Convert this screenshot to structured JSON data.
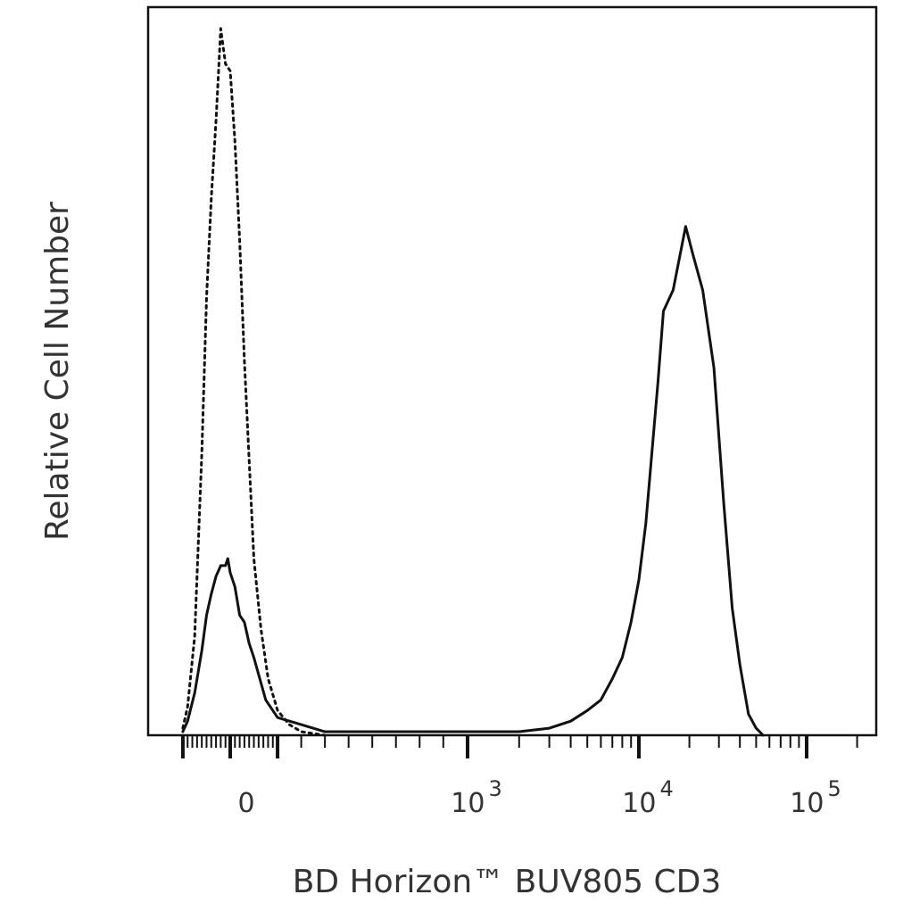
{
  "chart_data": {
    "type": "line",
    "title": "",
    "xlabel": "BD Horizon™ BUV805 CD3",
    "ylabel": "Relative Cell Number",
    "x_scale": "biexponential",
    "x_ticks": [
      {
        "value": 0,
        "base": "0",
        "exp": ""
      },
      {
        "value": 1000,
        "base": "10",
        "exp": "3"
      },
      {
        "value": 10000,
        "base": "10",
        "exp": "4"
      },
      {
        "value": 100000,
        "base": "10",
        "exp": "5"
      }
    ],
    "ylim": [
      0,
      100
    ],
    "grid": false,
    "legend": "none",
    "line_color": "#111111",
    "series": [
      {
        "style": "dotted",
        "x": [
          -200,
          -180,
          -150,
          -120,
          -100,
          -80,
          -60,
          -40,
          -20,
          0,
          20,
          40,
          60,
          80,
          100,
          130,
          160,
          200,
          250,
          300,
          400
        ],
        "y": [
          1,
          4,
          14,
          40,
          62,
          76,
          87,
          100,
          95,
          94,
          84,
          70,
          53,
          39,
          25,
          15,
          8,
          3.5,
          1.5,
          0.5,
          0
        ]
      },
      {
        "style": "solid",
        "x": [
          -200,
          -180,
          -150,
          -120,
          -100,
          -80,
          -60,
          -40,
          -20,
          -10,
          0,
          20,
          40,
          60,
          80,
          100,
          150,
          200,
          300,
          400,
          2000,
          3000,
          4000,
          5000,
          6000,
          7000,
          8000,
          9000,
          10000,
          11000,
          13000,
          14000,
          16000,
          19000,
          21000,
          24000,
          28000,
          32000,
          36000,
          40000,
          45000,
          50000,
          55000
        ],
        "y": [
          0.5,
          2,
          6,
          12,
          17,
          20,
          22.5,
          24,
          24,
          25,
          23,
          21,
          17,
          16,
          13,
          11,
          5,
          2.5,
          1.5,
          0.5,
          0.5,
          1,
          2,
          3.5,
          5,
          8,
          11,
          16,
          22,
          30,
          50,
          60,
          63,
          72,
          68,
          63,
          52,
          33,
          18,
          10,
          3,
          1,
          0
        ]
      }
    ]
  }
}
